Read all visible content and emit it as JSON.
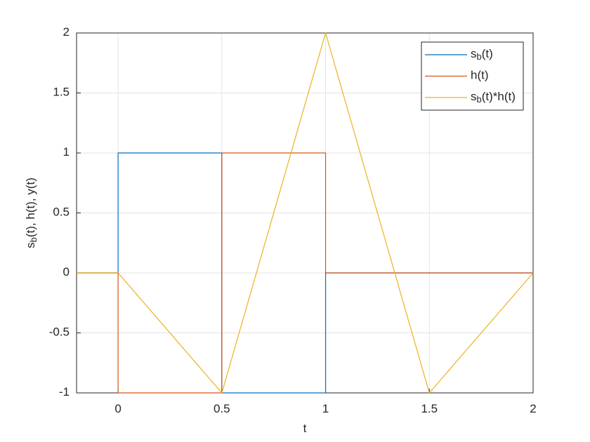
{
  "chart_data": {
    "type": "line",
    "xlabel": "t",
    "ylabel": "s_b(t), h(t), y(t)",
    "xlim": [
      -0.2,
      2
    ],
    "ylim": [
      -1,
      2
    ],
    "xticks": [
      0,
      0.5,
      1,
      1.5,
      2
    ],
    "yticks": [
      -1,
      -0.5,
      0,
      0.5,
      1,
      1.5,
      2
    ],
    "grid": true,
    "legend": "upper right",
    "series": [
      {
        "name": "s_b(t)",
        "color": "#0072BD",
        "x": [
          -0.2,
          0,
          0,
          0.5,
          0.5,
          1,
          1,
          2
        ],
        "values": [
          0,
          0,
          1,
          1,
          -1,
          -1,
          0,
          0
        ]
      },
      {
        "name": "h(t)",
        "color": "#D95319",
        "x": [
          -0.2,
          0,
          0,
          0.5,
          0.5,
          1,
          1,
          2
        ],
        "values": [
          0,
          0,
          -1,
          -1,
          1,
          1,
          0,
          0
        ]
      },
      {
        "name": "s_b(t)*h(t)",
        "color": "#EDB120",
        "x": [
          -0.2,
          0,
          0.5,
          1,
          1.5,
          2
        ],
        "values": [
          0,
          0,
          -1,
          2,
          -1,
          0
        ]
      }
    ]
  }
}
